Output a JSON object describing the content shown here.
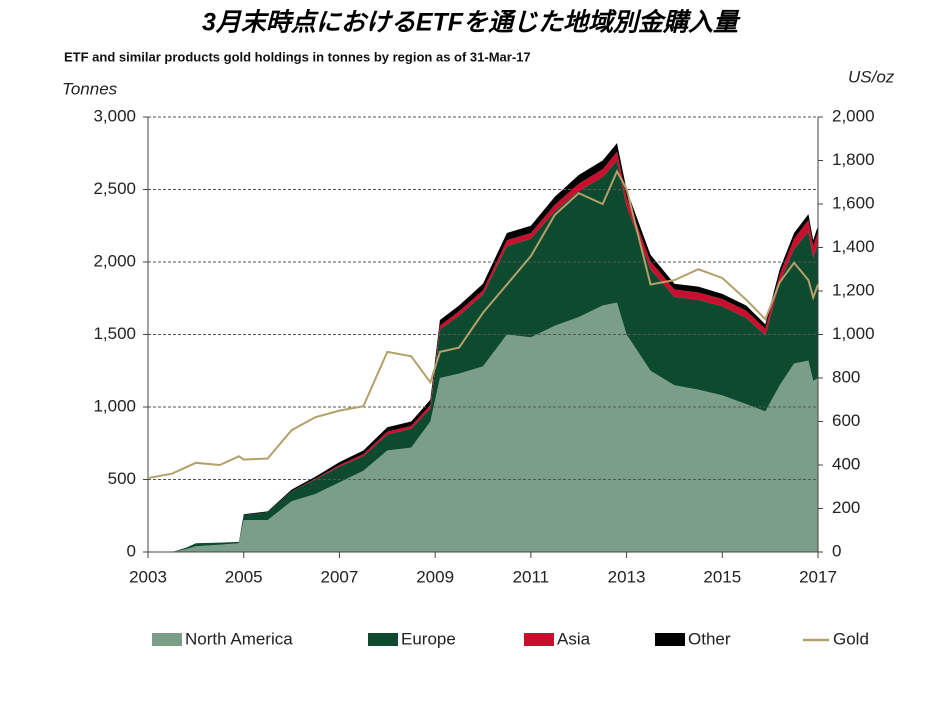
{
  "chart_data": {
    "type": "area",
    "title": "3月末時点におけるETFを通じた地域別金購入量",
    "subtitle": "ETF and similar products  gold holdings in tonnes by region as of 31-Mar-17",
    "y_label": "Tonnes",
    "y2_label": "US/oz",
    "stacked": true,
    "grid": true,
    "legend": "bottom",
    "x": [
      2003,
      2003.5,
      2003.8,
      2004,
      2004.5,
      2004.9,
      2005,
      2005.5,
      2006,
      2006.5,
      2007,
      2007.5,
      2008,
      2008.5,
      2008.9,
      2009.1,
      2009.5,
      2010,
      2010.5,
      2011,
      2011.5,
      2012,
      2012.5,
      2012.8,
      2013,
      2013.5,
      2014,
      2014.5,
      2015,
      2015.5,
      2015.9,
      2016.2,
      2016.5,
      2016.8,
      2016.9,
      2017
    ],
    "series": [
      {
        "name": "North America",
        "color": "#7b9e89",
        "values": [
          0,
          0,
          20,
          40,
          50,
          60,
          220,
          220,
          350,
          400,
          480,
          560,
          700,
          720,
          900,
          1200,
          1230,
          1280,
          1500,
          1480,
          1560,
          1620,
          1700,
          1720,
          1500,
          1250,
          1150,
          1120,
          1080,
          1020,
          970,
          1150,
          1300,
          1320,
          1180,
          1200
        ]
      },
      {
        "name": "Europe",
        "color": "#0e4a2f",
        "values": [
          0,
          0,
          10,
          20,
          15,
          10,
          35,
          55,
          70,
          100,
          110,
          100,
          110,
          130,
          90,
          335,
          400,
          495,
          610,
          680,
          790,
          870,
          885,
          980,
          885,
          700,
          610,
          620,
          615,
          595,
          525,
          710,
          790,
          890,
          850,
          930
        ]
      },
      {
        "name": "Asia",
        "color": "#c8102e",
        "values": [
          0,
          0,
          0,
          0,
          0,
          0,
          0,
          0,
          0,
          5,
          10,
          15,
          20,
          20,
          25,
          25,
          30,
          30,
          40,
          40,
          45,
          50,
          55,
          60,
          60,
          55,
          50,
          50,
          50,
          50,
          45,
          55,
          70,
          80,
          80,
          80
        ]
      },
      {
        "name": "Other",
        "color": "#000000",
        "values": [
          0,
          0,
          0,
          0,
          0,
          0,
          5,
          5,
          10,
          15,
          20,
          25,
          30,
          30,
          35,
          40,
          40,
          45,
          50,
          50,
          55,
          60,
          60,
          60,
          55,
          45,
          40,
          40,
          35,
          35,
          30,
          35,
          40,
          40,
          40,
          40
        ]
      },
      {
        "name": "Gold",
        "color": "#b3a06a",
        "type": "line",
        "axis": "y2",
        "values": [
          340,
          360,
          390,
          410,
          400,
          440,
          425,
          430,
          560,
          620,
          650,
          670,
          920,
          900,
          780,
          920,
          940,
          1100,
          1230,
          1360,
          1550,
          1650,
          1600,
          1750,
          1670,
          1230,
          1250,
          1300,
          1260,
          1160,
          1070,
          1240,
          1330,
          1250,
          1170,
          1230
        ]
      }
    ],
    "xlim": [
      2003,
      2017
    ],
    "xticks": [
      2003,
      2005,
      2007,
      2009,
      2011,
      2013,
      2015,
      2017
    ],
    "ylim": [
      0,
      3000
    ],
    "yticks": [
      0,
      500,
      {
        "value": 1000,
        "label": "1,000"
      },
      {
        "value": 1500,
        "label": "1,500"
      },
      {
        "value": 2000,
        "label": "2,000"
      },
      {
        "value": 2500,
        "label": "2,500"
      },
      {
        "value": 3000,
        "label": "3,000"
      }
    ],
    "y2lim": [
      0,
      2000
    ],
    "y2ticks": [
      0,
      200,
      400,
      600,
      800,
      {
        "value": 1000,
        "label": "1,000"
      },
      {
        "value": 1200,
        "label": "1,200"
      },
      {
        "value": 1400,
        "label": "1,400"
      },
      {
        "value": 1600,
        "label": "1,600"
      },
      {
        "value": 1800,
        "label": "1,800"
      },
      {
        "value": 2000,
        "label": "2,000"
      }
    ]
  }
}
